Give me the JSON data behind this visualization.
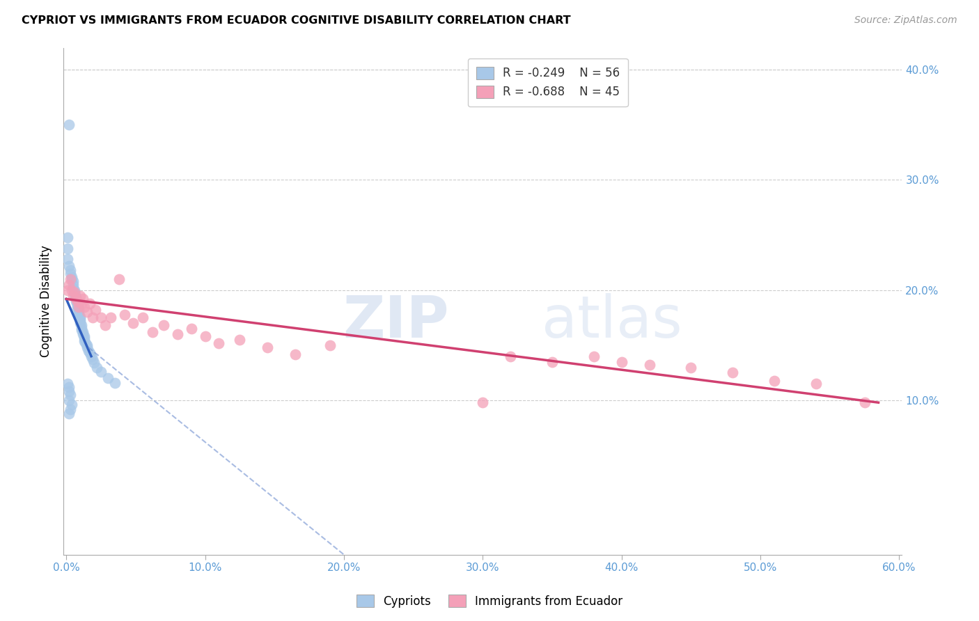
{
  "title": "CYPRIOT VS IMMIGRANTS FROM ECUADOR COGNITIVE DISABILITY CORRELATION CHART",
  "source": "Source: ZipAtlas.com",
  "ylabel": "Cognitive Disability",
  "xlim": [
    -0.002,
    0.602
  ],
  "ylim": [
    -0.04,
    0.42
  ],
  "xtick_vals": [
    0.0,
    0.1,
    0.2,
    0.3,
    0.4,
    0.5,
    0.6
  ],
  "xtick_labels": [
    "0.0%",
    "10.0%",
    "20.0%",
    "30.0%",
    "40.0%",
    "50.0%",
    "60.0%"
  ],
  "ytick_vals": [
    0.1,
    0.2,
    0.3,
    0.4
  ],
  "ytick_labels": [
    "10.0%",
    "20.0%",
    "30.0%",
    "40.0%"
  ],
  "color_cypriot": "#a8c8e8",
  "color_ecuador": "#f4a0b8",
  "color_line_cypriot_solid": "#3060c0",
  "color_line_cypriot_dash": "#7090d0",
  "color_line_ecuador": "#d04070",
  "color_axis_ticks": "#5b9bd5",
  "color_grid": "#cccccc",
  "cypriot_x": [
    0.002,
    0.001,
    0.001,
    0.001,
    0.002,
    0.003,
    0.003,
    0.004,
    0.004,
    0.005,
    0.005,
    0.005,
    0.006,
    0.006,
    0.006,
    0.007,
    0.007,
    0.007,
    0.008,
    0.008,
    0.008,
    0.009,
    0.009,
    0.009,
    0.01,
    0.01,
    0.01,
    0.01,
    0.011,
    0.011,
    0.011,
    0.012,
    0.012,
    0.013,
    0.013,
    0.013,
    0.014,
    0.015,
    0.015,
    0.016,
    0.017,
    0.018,
    0.019,
    0.02,
    0.022,
    0.025,
    0.03,
    0.035,
    0.001,
    0.002,
    0.002,
    0.003,
    0.002,
    0.004,
    0.003,
    0.002
  ],
  "cypriot_y": [
    0.35,
    0.248,
    0.238,
    0.228,
    0.222,
    0.218,
    0.215,
    0.212,
    0.21,
    0.208,
    0.205,
    0.202,
    0.2,
    0.198,
    0.196,
    0.194,
    0.192,
    0.19,
    0.188,
    0.186,
    0.184,
    0.182,
    0.18,
    0.178,
    0.176,
    0.174,
    0.172,
    0.17,
    0.168,
    0.166,
    0.164,
    0.162,
    0.16,
    0.158,
    0.156,
    0.154,
    0.152,
    0.15,
    0.148,
    0.145,
    0.143,
    0.14,
    0.137,
    0.134,
    0.13,
    0.126,
    0.12,
    0.116,
    0.115,
    0.112,
    0.108,
    0.105,
    0.1,
    0.096,
    0.092,
    0.088
  ],
  "ecuador_x": [
    0.001,
    0.002,
    0.003,
    0.004,
    0.005,
    0.006,
    0.007,
    0.008,
    0.009,
    0.01,
    0.011,
    0.012,
    0.013,
    0.015,
    0.017,
    0.019,
    0.021,
    0.025,
    0.028,
    0.032,
    0.038,
    0.042,
    0.048,
    0.055,
    0.062,
    0.07,
    0.08,
    0.09,
    0.1,
    0.11,
    0.125,
    0.145,
    0.165,
    0.19,
    0.32,
    0.35,
    0.38,
    0.4,
    0.42,
    0.45,
    0.48,
    0.51,
    0.54,
    0.575,
    0.3
  ],
  "ecuador_y": [
    0.2,
    0.205,
    0.21,
    0.2,
    0.195,
    0.198,
    0.192,
    0.19,
    0.185,
    0.195,
    0.188,
    0.192,
    0.185,
    0.18,
    0.188,
    0.175,
    0.182,
    0.175,
    0.168,
    0.175,
    0.21,
    0.178,
    0.17,
    0.175,
    0.162,
    0.168,
    0.16,
    0.165,
    0.158,
    0.152,
    0.155,
    0.148,
    0.142,
    0.15,
    0.14,
    0.135,
    0.14,
    0.135,
    0.132,
    0.13,
    0.125,
    0.118,
    0.115,
    0.098,
    0.098
  ],
  "line_cyp_x0": 0.0,
  "line_cyp_y0": 0.192,
  "line_cyp_x1": 0.018,
  "line_cyp_y1": 0.14,
  "line_cyp_dash_x0": 0.016,
  "line_cyp_dash_y0": 0.148,
  "line_cyp_dash_x1": 0.2,
  "line_cyp_dash_y1": -0.04,
  "line_ecu_x0": 0.0,
  "line_ecu_y0": 0.192,
  "line_ecu_x1": 0.585,
  "line_ecu_y1": 0.098
}
